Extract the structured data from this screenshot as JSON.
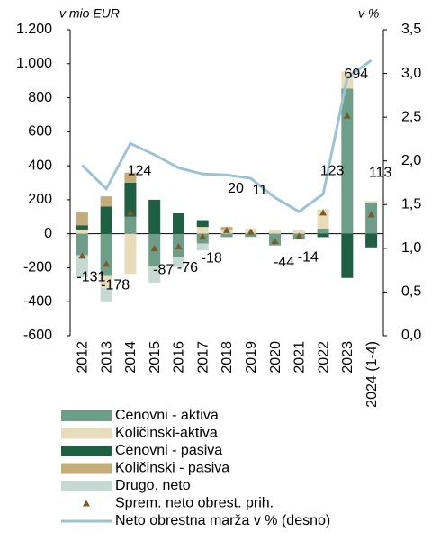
{
  "chart_data": {
    "type": "stacked-bar-line",
    "y_label": "v mio EUR",
    "y2_label": "v  %",
    "categories": [
      "2012",
      "2013",
      "2014",
      "2015",
      "2016",
      "2017",
      "2018",
      "2019",
      "2020",
      "2021",
      "2022",
      "2023",
      "2024 (1-4)"
    ],
    "series": [
      {
        "name": "Cenovni - aktiva",
        "color": "#6e9e89",
        "values": [
          -126,
          -248,
          100,
          -187,
          -136,
          -58,
          -20,
          -19,
          -69,
          -34,
          30,
          854,
          183
        ]
      },
      {
        "name": "Količinski-aktiva",
        "color": "#e8dcbb",
        "values": [
          25,
          -70,
          -236,
          0,
          0,
          40,
          20,
          30,
          25,
          20,
          113,
          100,
          10
        ]
      },
      {
        "name": "Cenovni - pasiva",
        "color": "#1f5f44",
        "values": [
          25,
          160,
          200,
          200,
          120,
          40,
          0,
          0,
          0,
          0,
          -20,
          -260,
          -80
        ]
      },
      {
        "name": "Količinski - pasiva",
        "color": "#c3ad7b",
        "values": [
          75,
          60,
          60,
          0,
          0,
          0,
          20,
          0,
          0,
          0,
          0,
          0,
          0
        ]
      },
      {
        "name": "Drugo, neto",
        "color": "#c6dad3",
        "values": [
          -130,
          -80,
          0,
          -100,
          -60,
          -40,
          0,
          0,
          0,
          0,
          0,
          0,
          0
        ]
      }
    ],
    "markers": {
      "name": "Sprem. neto obrest. prih.",
      "color": "#7a5a2a",
      "values": [
        -131,
        -178,
        124,
        -87,
        -76,
        -18,
        20,
        11,
        -44,
        -14,
        123,
        694,
        113
      ]
    },
    "line": {
      "name": "Neto obrestna marža v % (desno)",
      "color": "#9cc3d5",
      "axis": "y2",
      "values": [
        1.95,
        1.68,
        2.2,
        2.07,
        1.92,
        1.85,
        1.84,
        1.8,
        1.58,
        1.42,
        1.62,
        2.95,
        3.15
      ]
    },
    "ylim": [
      -600,
      1200
    ],
    "yticks": [
      {
        "value": -600,
        "label": "-600"
      },
      {
        "value": -400,
        "label": "-400"
      },
      {
        "value": -200,
        "label": "-200"
      },
      0,
      200,
      400,
      600,
      800,
      {
        "value": 1000,
        "label": "1.000"
      },
      {
        "value": 1200,
        "label": "1.200"
      }
    ],
    "y2lim": [
      0,
      3.5
    ],
    "y2ticks": [
      {
        "value": 0,
        "label": "0,0"
      },
      {
        "value": 0.5,
        "label": "0,5"
      },
      {
        "value": 1,
        "label": "1,0"
      },
      {
        "value": 1.5,
        "label": "1,5"
      },
      {
        "value": 2,
        "label": "2,0"
      },
      {
        "value": 2.5,
        "label": "2,5"
      },
      {
        "value": 3,
        "label": "3,0"
      },
      {
        "value": 3.5,
        "label": "3,5"
      }
    ]
  }
}
